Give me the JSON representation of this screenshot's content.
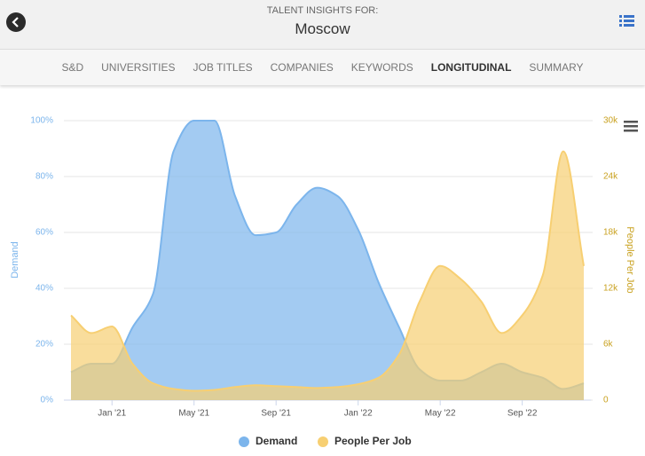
{
  "header": {
    "subtitle": "TALENT INSIGHTS FOR:",
    "title": "Moscow"
  },
  "tabs": [
    "S&D",
    "UNIVERSITIES",
    "JOB TITLES",
    "COMPANIES",
    "KEYWORDS",
    "LONGITUDINAL",
    "SUMMARY"
  ],
  "active_tab": 5,
  "chart_data": {
    "type": "area",
    "categories": [
      null,
      null,
      "Jan '21",
      null,
      null,
      null,
      "May '21",
      null,
      null,
      null,
      "Sep '21",
      null,
      null,
      null,
      "Jan '22",
      null,
      null,
      null,
      "May '22",
      null,
      null,
      null,
      "Sep '22",
      null,
      null,
      null
    ],
    "series": [
      {
        "name": "Demand",
        "color": "#7cb5ec",
        "axis": "y",
        "values": [
          10,
          13,
          13,
          26,
          38,
          89,
          100,
          100,
          73,
          59,
          60,
          70,
          76,
          73,
          61,
          42,
          26,
          11,
          7,
          7,
          10,
          13,
          10,
          8,
          4,
          6
        ]
      },
      {
        "name": "People Per Job",
        "color": "#f7cf72",
        "axis": "y2",
        "values": [
          9100,
          7200,
          7900,
          3900,
          1800,
          1200,
          1000,
          1100,
          1400,
          1600,
          1500,
          1400,
          1300,
          1400,
          1700,
          2400,
          4900,
          10600,
          14400,
          13000,
          10600,
          7200,
          9100,
          13400,
          26700,
          14400
        ]
      }
    ],
    "y_label": "Demand",
    "y2_label": "People Per Job",
    "ylim": [
      0,
      100
    ],
    "yticks": [
      {
        "value": 0,
        "label": "0%"
      },
      {
        "value": 20,
        "label": "20%"
      },
      {
        "value": 40,
        "label": "40%"
      },
      {
        "value": 60,
        "label": "60%"
      },
      {
        "value": 80,
        "label": "80%"
      },
      {
        "value": 100,
        "label": "100%"
      }
    ],
    "y2lim": [
      0,
      30000
    ],
    "y2ticks": [
      0,
      {
        "value": 6000,
        "label": "6k"
      },
      {
        "value": 12000,
        "label": "12k"
      },
      {
        "value": 18000,
        "label": "18k"
      },
      {
        "value": 24000,
        "label": "24k"
      },
      {
        "value": 30000,
        "label": "30k"
      }
    ],
    "grid": true,
    "legend": "bottom"
  }
}
